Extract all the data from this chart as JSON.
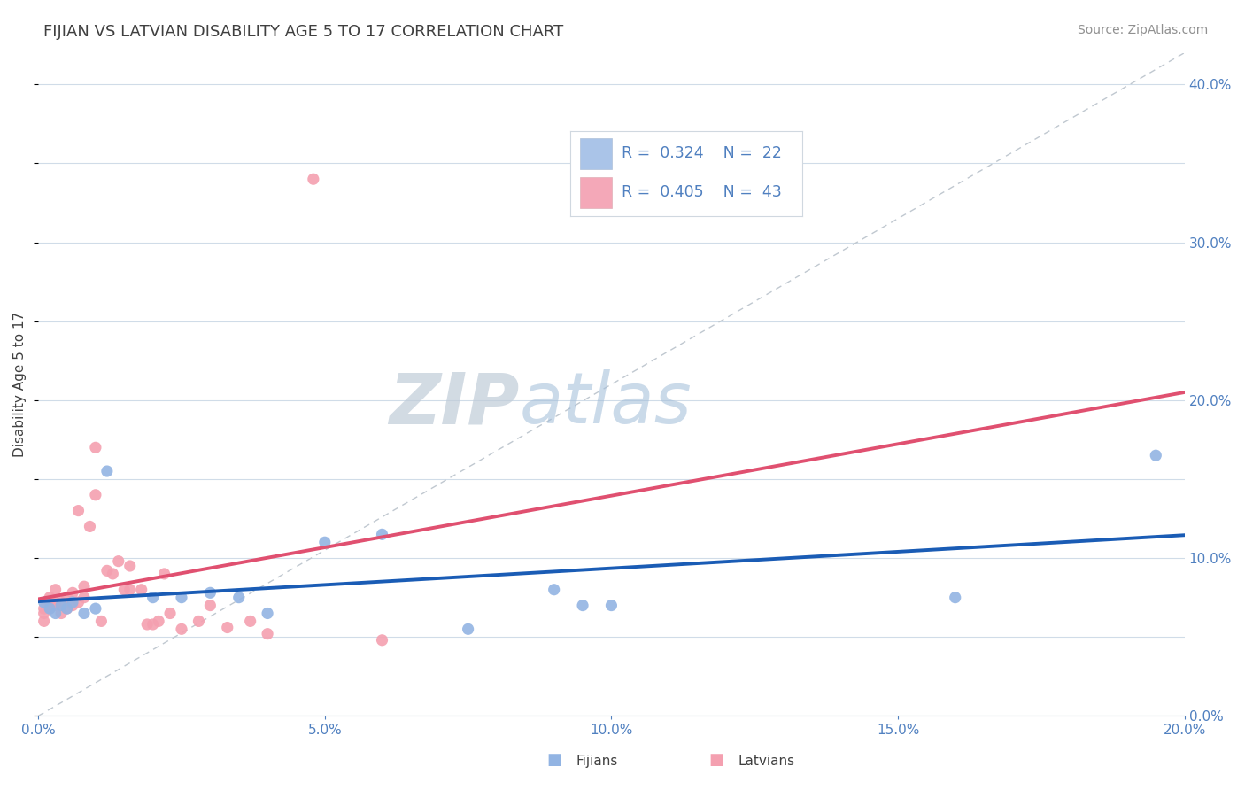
{
  "title": "FIJIAN VS LATVIAN DISABILITY AGE 5 TO 17 CORRELATION CHART",
  "source": "Source: ZipAtlas.com",
  "ylabel": "Disability Age 5 to 17",
  "xlim": [
    0.0,
    0.2
  ],
  "ylim": [
    0.0,
    0.42
  ],
  "xticks": [
    0.0,
    0.05,
    0.1,
    0.15,
    0.2
  ],
  "yticks_right": [
    0.0,
    0.1,
    0.2,
    0.3,
    0.4
  ],
  "fijian_color": "#92b4e3",
  "latvian_color": "#f4a0b0",
  "fijian_line_color": "#1a5cb5",
  "latvian_line_color": "#e05070",
  "legend_box_fijian": "#aac4e8",
  "legend_box_latvian": "#f4a8b8",
  "R_fijian": 0.324,
  "N_fijian": 22,
  "R_latvian": 0.405,
  "N_latvian": 43,
  "fijian_x": [
    0.001,
    0.002,
    0.003,
    0.004,
    0.005,
    0.006,
    0.008,
    0.01,
    0.012,
    0.02,
    0.025,
    0.03,
    0.035,
    0.04,
    0.05,
    0.06,
    0.075,
    0.09,
    0.095,
    0.1,
    0.16,
    0.195
  ],
  "fijian_y": [
    0.072,
    0.068,
    0.065,
    0.07,
    0.068,
    0.072,
    0.065,
    0.068,
    0.155,
    0.075,
    0.075,
    0.078,
    0.075,
    0.065,
    0.11,
    0.115,
    0.055,
    0.08,
    0.07,
    0.07,
    0.075,
    0.165
  ],
  "latvian_x": [
    0.001,
    0.001,
    0.001,
    0.002,
    0.002,
    0.002,
    0.003,
    0.003,
    0.003,
    0.004,
    0.004,
    0.005,
    0.005,
    0.006,
    0.006,
    0.007,
    0.007,
    0.008,
    0.008,
    0.009,
    0.01,
    0.01,
    0.011,
    0.012,
    0.013,
    0.014,
    0.015,
    0.016,
    0.016,
    0.018,
    0.019,
    0.02,
    0.021,
    0.022,
    0.023,
    0.025,
    0.028,
    0.03,
    0.033,
    0.037,
    0.04,
    0.048,
    0.06
  ],
  "latvian_y": [
    0.06,
    0.065,
    0.068,
    0.068,
    0.072,
    0.075,
    0.07,
    0.072,
    0.08,
    0.065,
    0.072,
    0.068,
    0.075,
    0.07,
    0.078,
    0.072,
    0.13,
    0.075,
    0.082,
    0.12,
    0.14,
    0.17,
    0.06,
    0.092,
    0.09,
    0.098,
    0.08,
    0.08,
    0.095,
    0.08,
    0.058,
    0.058,
    0.06,
    0.09,
    0.065,
    0.055,
    0.06,
    0.07,
    0.056,
    0.06,
    0.052,
    0.34,
    0.048
  ],
  "background_color": "#ffffff",
  "grid_color": "#d0dce8",
  "title_color": "#404040",
  "axis_label_color": "#404040",
  "tick_color": "#5080c0",
  "watermark_zip": "ZIP",
  "watermark_atlas": "atlas",
  "watermark_color_zip": "#c8d0dc",
  "watermark_color_atlas": "#a8c8e0"
}
